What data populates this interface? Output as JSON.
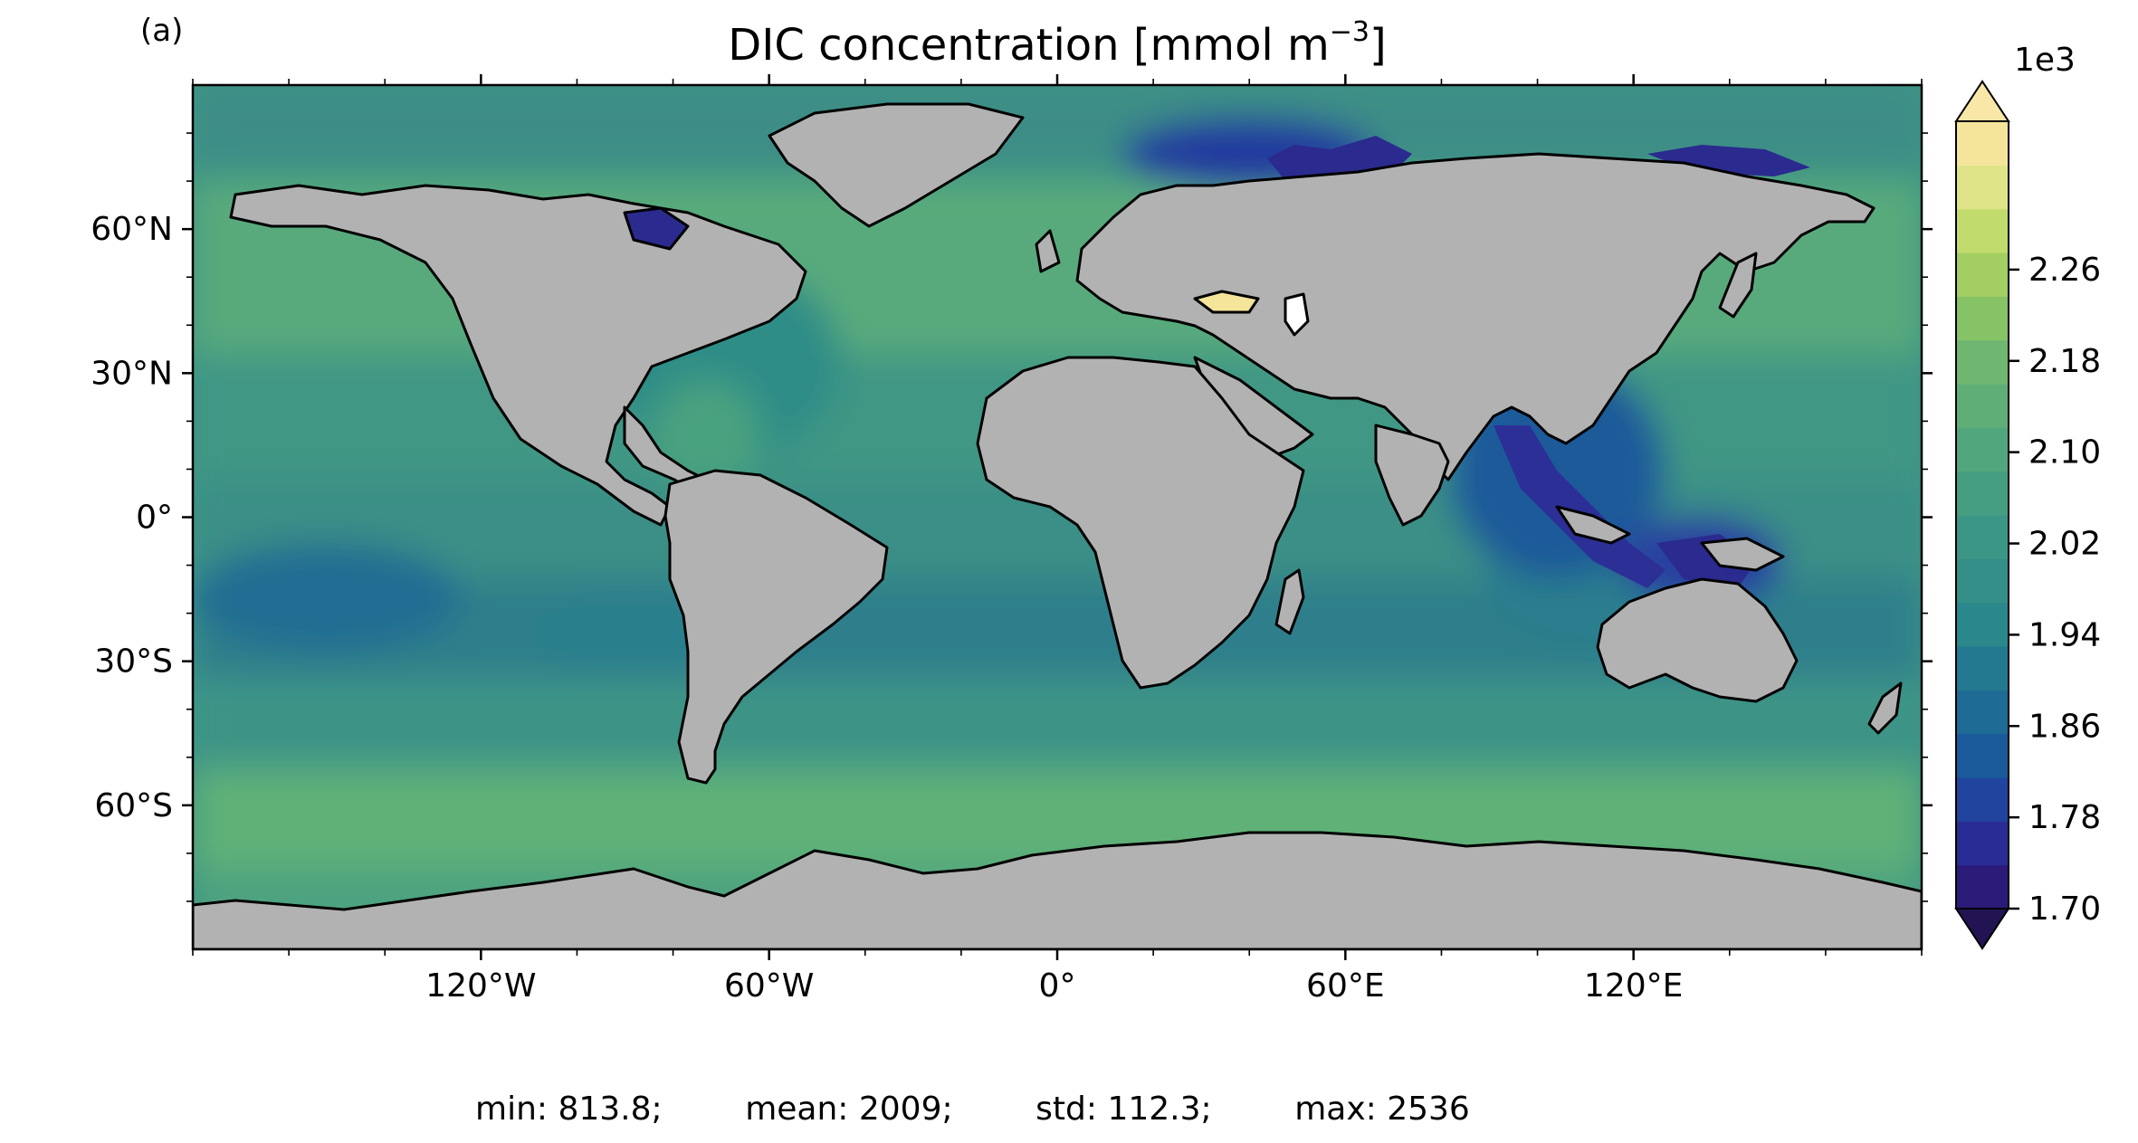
{
  "panel": {
    "label": "(a)"
  },
  "title": {
    "text": "DIC concentration [mmol m",
    "sup": "−3",
    "suffix": "]"
  },
  "axes": {
    "lat_ticks": [
      "60°N",
      "30°N",
      "0°",
      "30°S",
      "60°S"
    ],
    "lon_ticks": [
      "120°W",
      "60°W",
      "0°",
      "60°E",
      "120°E"
    ]
  },
  "colorbar": {
    "multiplier": "1e3",
    "ticks": [
      "2.26",
      "2.18",
      "2.10",
      "2.02",
      "1.94",
      "1.86",
      "1.78",
      "1.70"
    ],
    "colors": [
      "#2b1a78",
      "#2a2c96",
      "#21449f",
      "#1a5a9a",
      "#1e6c95",
      "#23798f",
      "#2a878b",
      "#338f88",
      "#3c9686",
      "#469e82",
      "#52a67d",
      "#5fae77",
      "#6fb770",
      "#86c266",
      "#a2ce63",
      "#c2db6d",
      "#dfe488",
      "#f5e59b"
    ],
    "extend_colors": {
      "low": "#221452",
      "high": "#f8e7a6"
    }
  },
  "stats": {
    "min": "min: 813.8;",
    "mean": "mean: 2009;",
    "std": "std: 112.3;",
    "max": "max: 2536"
  },
  "colors": {
    "land": "#b2b2b2",
    "ocean_base": "#3e9585",
    "coast": "#000000",
    "ice": "#ffffff"
  }
}
